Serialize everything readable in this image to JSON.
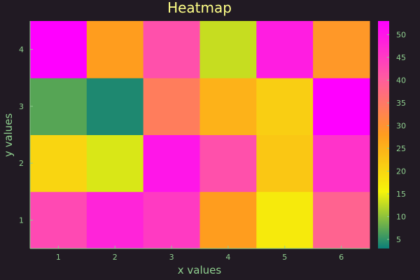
{
  "chart_data": {
    "type": "heatmap",
    "title": "Heatmap",
    "xlabel": "x values",
    "ylabel": "y values",
    "x": [
      1,
      2,
      3,
      4,
      5,
      6
    ],
    "y": [
      1,
      2,
      3,
      4
    ],
    "z": [
      [
        43,
        48,
        45,
        28,
        17,
        39
      ],
      [
        20,
        14,
        50,
        42,
        22,
        46
      ],
      [
        7,
        4,
        34,
        25,
        21,
        53
      ],
      [
        53,
        28,
        42,
        13,
        49,
        29
      ]
    ],
    "zlim": [
      3,
      53
    ],
    "colorbar_ticks": [
      5,
      10,
      15,
      20,
      25,
      30,
      35,
      40,
      45,
      50
    ],
    "colormap": [
      "#0b7f79",
      "#f5f50a",
      "#ff9d1e",
      "#ff5ba0",
      "#ff00ff"
    ],
    "colors": {
      "background": "#211a23",
      "title": "#ffff88",
      "axis_text": "#8fcf8f",
      "tick_text": "#8fcf8f",
      "frame": "#8fcf8f"
    },
    "grid": false,
    "colorbar": "right"
  }
}
